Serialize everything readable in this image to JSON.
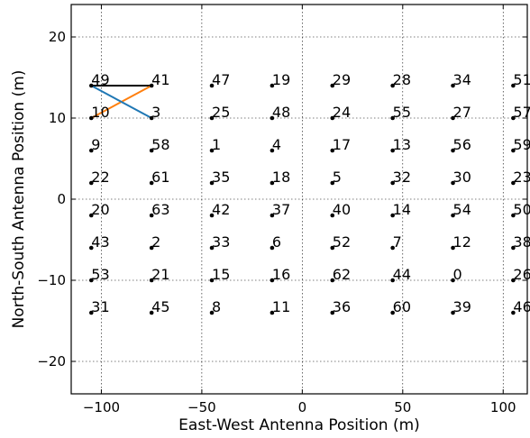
{
  "chart_data": {
    "type": "scatter",
    "title": "",
    "xlabel": "East-West Antenna Position (m)",
    "ylabel": "North-South Antenna Position (m)",
    "xlim": [
      -115,
      112
    ],
    "ylim": [
      -24,
      24
    ],
    "xticks": [
      -100,
      -50,
      0,
      50,
      100
    ],
    "yticks": [
      -20,
      -10,
      0,
      10,
      20
    ],
    "xtick_labels": [
      "−100",
      "−50",
      "0",
      "50",
      "100"
    ],
    "ytick_labels": [
      "−20",
      "−10",
      "0",
      "10",
      "20"
    ],
    "grid": true,
    "grid_style": "dotted",
    "marker_color": "#000000",
    "antennas": [
      {
        "label": "49",
        "x": -105,
        "y": 14
      },
      {
        "label": "41",
        "x": -75,
        "y": 14
      },
      {
        "label": "47",
        "x": -45,
        "y": 14
      },
      {
        "label": "19",
        "x": -15,
        "y": 14
      },
      {
        "label": "29",
        "x": 15,
        "y": 14
      },
      {
        "label": "28",
        "x": 45,
        "y": 14
      },
      {
        "label": "34",
        "x": 75,
        "y": 14
      },
      {
        "label": "51",
        "x": 105,
        "y": 14
      },
      {
        "label": "10",
        "x": -105,
        "y": 10
      },
      {
        "label": "3",
        "x": -75,
        "y": 10
      },
      {
        "label": "25",
        "x": -45,
        "y": 10
      },
      {
        "label": "48",
        "x": -15,
        "y": 10
      },
      {
        "label": "24",
        "x": 15,
        "y": 10
      },
      {
        "label": "55",
        "x": 45,
        "y": 10
      },
      {
        "label": "27",
        "x": 75,
        "y": 10
      },
      {
        "label": "57",
        "x": 105,
        "y": 10
      },
      {
        "label": "9",
        "x": -105,
        "y": 6
      },
      {
        "label": "58",
        "x": -75,
        "y": 6
      },
      {
        "label": "1",
        "x": -45,
        "y": 6
      },
      {
        "label": "4",
        "x": -15,
        "y": 6
      },
      {
        "label": "17",
        "x": 15,
        "y": 6
      },
      {
        "label": "13",
        "x": 45,
        "y": 6
      },
      {
        "label": "56",
        "x": 75,
        "y": 6
      },
      {
        "label": "59",
        "x": 105,
        "y": 6
      },
      {
        "label": "22",
        "x": -105,
        "y": 2
      },
      {
        "label": "61",
        "x": -75,
        "y": 2
      },
      {
        "label": "35",
        "x": -45,
        "y": 2
      },
      {
        "label": "18",
        "x": -15,
        "y": 2
      },
      {
        "label": "5",
        "x": 15,
        "y": 2
      },
      {
        "label": "32",
        "x": 45,
        "y": 2
      },
      {
        "label": "30",
        "x": 75,
        "y": 2
      },
      {
        "label": "23",
        "x": 105,
        "y": 2
      },
      {
        "label": "20",
        "x": -105,
        "y": -2
      },
      {
        "label": "63",
        "x": -75,
        "y": -2
      },
      {
        "label": "42",
        "x": -45,
        "y": -2
      },
      {
        "label": "37",
        "x": -15,
        "y": -2
      },
      {
        "label": "40",
        "x": 15,
        "y": -2
      },
      {
        "label": "14",
        "x": 45,
        "y": -2
      },
      {
        "label": "54",
        "x": 75,
        "y": -2
      },
      {
        "label": "50",
        "x": 105,
        "y": -2
      },
      {
        "label": "43",
        "x": -105,
        "y": -6
      },
      {
        "label": "2",
        "x": -75,
        "y": -6
      },
      {
        "label": "33",
        "x": -45,
        "y": -6
      },
      {
        "label": "6",
        "x": -15,
        "y": -6
      },
      {
        "label": "52",
        "x": 15,
        "y": -6
      },
      {
        "label": "7",
        "x": 45,
        "y": -6
      },
      {
        "label": "12",
        "x": 75,
        "y": -6
      },
      {
        "label": "38",
        "x": 105,
        "y": -6
      },
      {
        "label": "53",
        "x": -105,
        "y": -10
      },
      {
        "label": "21",
        "x": -75,
        "y": -10
      },
      {
        "label": "15",
        "x": -45,
        "y": -10
      },
      {
        "label": "16",
        "x": -15,
        "y": -10
      },
      {
        "label": "62",
        "x": 15,
        "y": -10
      },
      {
        "label": "44",
        "x": 45,
        "y": -10
      },
      {
        "label": "0",
        "x": 75,
        "y": -10
      },
      {
        "label": "26",
        "x": 105,
        "y": -10
      },
      {
        "label": "31",
        "x": -105,
        "y": -14
      },
      {
        "label": "45",
        "x": -75,
        "y": -14
      },
      {
        "label": "8",
        "x": -45,
        "y": -14
      },
      {
        "label": "11",
        "x": -15,
        "y": -14
      },
      {
        "label": "36",
        "x": 15,
        "y": -14
      },
      {
        "label": "60",
        "x": 45,
        "y": -14
      },
      {
        "label": "39",
        "x": 75,
        "y": -14
      },
      {
        "label": "46",
        "x": 105,
        "y": -14
      }
    ],
    "baselines": [
      {
        "from": [
          -105,
          14
        ],
        "to": [
          -75,
          14
        ],
        "color": "#000000"
      },
      {
        "from": [
          -105,
          10
        ],
        "to": [
          -75,
          14
        ],
        "color": "#ff7f0e"
      },
      {
        "from": [
          -105,
          14
        ],
        "to": [
          -75,
          10
        ],
        "color": "#1f77b4"
      }
    ]
  }
}
